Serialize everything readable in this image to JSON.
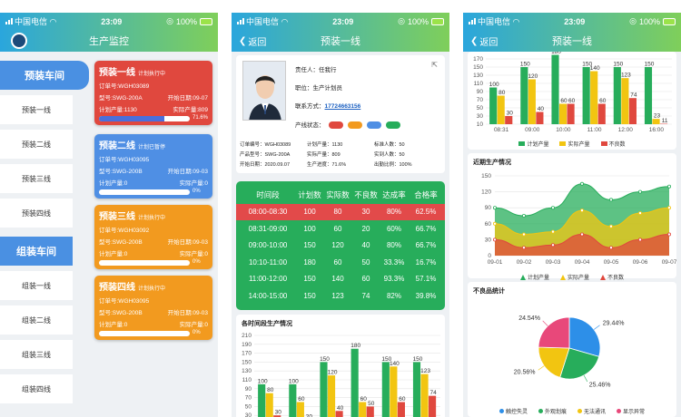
{
  "status": {
    "carrier": "中国电信",
    "time": "23:09",
    "battery": "100%"
  },
  "phone1": {
    "title": "生产监控",
    "categories": [
      {
        "label": "预装车间",
        "items": [
          "预装一线",
          "预装二线",
          "预装三线",
          "预装四线"
        ]
      },
      {
        "label": "组装车间",
        "items": [
          "组装一线",
          "组装二线",
          "组装三线",
          "组装四线"
        ]
      }
    ],
    "cards": [
      {
        "name": "预装一线",
        "state": "计划执行中",
        "order": "订单号:WGH03089",
        "model": "型号:SWG-200A",
        "start": "开始日期:09-07",
        "plan": "计划产量:1130",
        "actual": "实际产量:809",
        "progress": 71.6,
        "progress_label": "71.6%",
        "color": "#e0483e"
      },
      {
        "name": "预装二线",
        "state": "计划已暂停",
        "order": "订单号:WGH03095",
        "model": "型号:SWG-200B",
        "start": "开始日期:09-03",
        "plan": "计划产量:0",
        "actual": "实际产量:0",
        "progress": 0,
        "progress_label": "0%",
        "color": "#4f8fe4"
      },
      {
        "name": "预装三线",
        "state": "计划执行中",
        "order": "订单号:WGH03092",
        "model": "型号:SWG-200B",
        "start": "开始日期:09-03",
        "plan": "计划产量:0",
        "actual": "实际产量:0",
        "progress": 0,
        "progress_label": "0%",
        "color": "#f29a1f"
      },
      {
        "name": "预装四线",
        "state": "计划执行中",
        "order": "订单号:WGH03095",
        "model": "型号:SWG-200B",
        "start": "开始日期:09-03",
        "plan": "计划产量:0",
        "actual": "实际产量:0",
        "progress": 0,
        "progress_label": "0%",
        "color": "#f29a1f"
      }
    ]
  },
  "phone2": {
    "back": "返回",
    "title": "预装一线",
    "owner": "责任人：任我行",
    "position": "职位：生产计划员",
    "contact_label": "联系方式：",
    "contact": "17724663156",
    "line_state_label": "产线状态：",
    "state_colors": [
      "#e0483e",
      "#f29a1f",
      "#4f8fe4",
      "#27ad5b"
    ],
    "details": [
      "订单编号：WGH03089",
      "计划产量：1130",
      "标准人数：50",
      "产品型号：SWG-200A",
      "实际产量：809",
      "实到人数：50",
      "开始日期：2020.09.07",
      "生产进度：71.6%",
      "出勤比例：100%"
    ],
    "table": {
      "headers": [
        "时间段",
        "计划数",
        "实际数",
        "不良数",
        "达成率",
        "合格率"
      ],
      "rows": [
        [
          "08:00-08:30",
          "100",
          "80",
          "30",
          "80%",
          "62.5%"
        ],
        [
          "08:31-09:00",
          "100",
          "60",
          "20",
          "60%",
          "66.7%"
        ],
        [
          "09:00-10:00",
          "150",
          "120",
          "40",
          "80%",
          "66.7%"
        ],
        [
          "10:10-11:00",
          "180",
          "60",
          "50",
          "33.3%",
          "16.7%"
        ],
        [
          "11:00-12:00",
          "150",
          "140",
          "60",
          "93.3%",
          "57.1%"
        ],
        [
          "14:00-15:00",
          "150",
          "123",
          "74",
          "82%",
          "39.8%"
        ]
      ]
    },
    "chart_title": "各时间段生产情况"
  },
  "phone3": {
    "back": "返回",
    "title": "预装一线",
    "recent_title": "近期生产情况",
    "defect_title": "不良品统计"
  },
  "chart_data": [
    {
      "type": "bar",
      "title": "各时间段生产情况",
      "categories": [
        "08:31",
        "09:00",
        "10:00",
        "11:00",
        "12:00",
        "16:00"
      ],
      "ylim": [
        10,
        210
      ],
      "yticks": [
        10,
        30,
        50,
        70,
        90,
        110,
        130,
        150,
        170,
        190,
        210
      ],
      "series": [
        {
          "name": "计划产量",
          "color": "#27ad5b",
          "values": [
            100,
            100,
            150,
            180,
            150,
            150
          ]
        },
        {
          "name": "实际产量",
          "color": "#f2c511",
          "values": [
            80,
            60,
            120,
            60,
            140,
            123
          ]
        },
        {
          "name": "不良数",
          "color": "#e0483e",
          "values": [
            30,
            20,
            40,
            50,
            60,
            74
          ]
        }
      ],
      "legend": "bottom"
    },
    {
      "type": "bar",
      "categories": [
        "08:31",
        "09:00",
        "10:00",
        "11:00",
        "12:00",
        "16:00"
      ],
      "ylim": [
        10,
        170
      ],
      "yticks": [
        10,
        30,
        50,
        70,
        90,
        110,
        130,
        150,
        170
      ],
      "series": [
        {
          "name": "计划产量",
          "color": "#27ad5b",
          "values": [
            100,
            150,
            180,
            150,
            150,
            150
          ]
        },
        {
          "name": "实际产量",
          "color": "#f2c511",
          "values": [
            80,
            120,
            60,
            140,
            123,
            23
          ]
        },
        {
          "name": "不良数",
          "color": "#e0483e",
          "values": [
            30,
            40,
            60,
            60,
            74,
            11
          ]
        }
      ],
      "legend": "bottom"
    },
    {
      "type": "area",
      "title": "近期生产情况",
      "x": [
        "09-01",
        "09-02",
        "09-03",
        "09-04",
        "09-05",
        "09-06",
        "09-07"
      ],
      "ylim": [
        0,
        150
      ],
      "yticks": [
        0,
        30,
        60,
        90,
        120,
        150
      ],
      "series": [
        {
          "name": "计划产量",
          "color": "#27ad5b",
          "values": [
            90,
            75,
            90,
            135,
            105,
            120,
            130
          ]
        },
        {
          "name": "实际产量",
          "color": "#f2c511",
          "values": [
            60,
            40,
            45,
            85,
            55,
            80,
            90
          ]
        },
        {
          "name": "不良数",
          "color": "#e0483e",
          "values": [
            30,
            15,
            20,
            40,
            15,
            30,
            40
          ]
        }
      ],
      "legend": "bottom"
    },
    {
      "type": "pie",
      "title": "不良品统计",
      "slices": [
        {
          "name": "触控失灵",
          "color": "#2d8fe8",
          "value": 29.44,
          "label": "29.44%"
        },
        {
          "name": "外观划痕",
          "color": "#27ad5b",
          "value": 25.46,
          "label": "25.46%"
        },
        {
          "name": "无法通讯",
          "color": "#f2c511",
          "value": 20.56,
          "label": "20.56%"
        },
        {
          "name": "显示异常",
          "color": "#e8487a",
          "value": 24.54,
          "label": "24.54%"
        }
      ],
      "legend": "bottom"
    }
  ]
}
